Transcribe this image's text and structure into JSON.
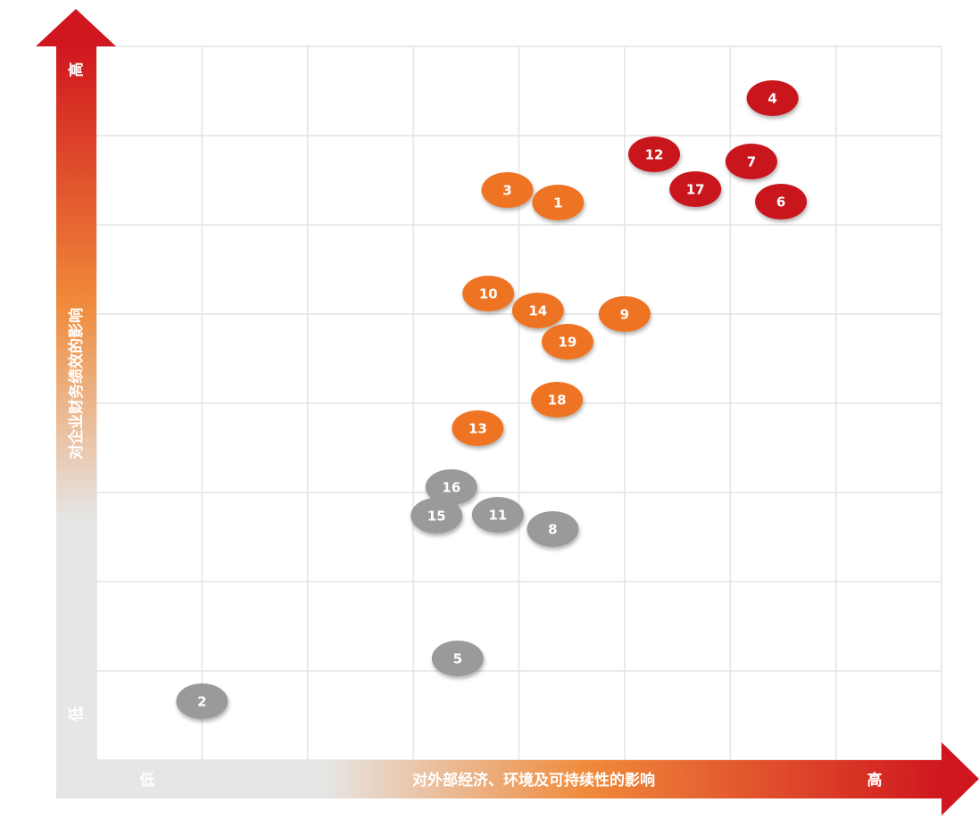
{
  "chart_data": {
    "type": "scatter",
    "y_label": "对企业财务绩效的影响",
    "y_high": "高",
    "y_low": "低",
    "x_label": "对外部经济、环境及可持续性的影响",
    "x_low": "低",
    "x_high": "高",
    "xlim": [
      0,
      8
    ],
    "ylim": [
      0,
      8
    ],
    "xticks": [
      0,
      1,
      2,
      3,
      4,
      5,
      6,
      7,
      8
    ],
    "yticks": [
      0,
      1,
      2,
      3,
      4,
      5,
      6,
      7,
      8
    ],
    "grid": true,
    "series": [
      {
        "color": "#c8141e",
        "labels": [
          "4",
          "12",
          "7",
          "17",
          "6"
        ],
        "x": [
          6.4,
          5.28,
          6.2,
          5.67,
          6.48
        ],
        "values": [
          7.42,
          6.79,
          6.71,
          6.4,
          6.26
        ]
      },
      {
        "color": "#ee7322",
        "labels": [
          "3",
          "1",
          "10",
          "14",
          "9",
          "19",
          "18",
          "13"
        ],
        "x": [
          3.89,
          4.37,
          3.71,
          4.18,
          5.0,
          4.46,
          4.36,
          3.61
        ],
        "values": [
          6.39,
          6.25,
          5.23,
          5.04,
          5.0,
          4.69,
          4.04,
          3.72
        ]
      },
      {
        "color": "#9a9a9a",
        "labels": [
          "16",
          "15",
          "11",
          "8",
          "5",
          "2"
        ],
        "x": [
          3.36,
          3.22,
          3.8,
          4.32,
          3.42,
          1.0
        ],
        "values": [
          3.06,
          2.74,
          2.75,
          2.59,
          1.14,
          0.66
        ]
      }
    ]
  }
}
